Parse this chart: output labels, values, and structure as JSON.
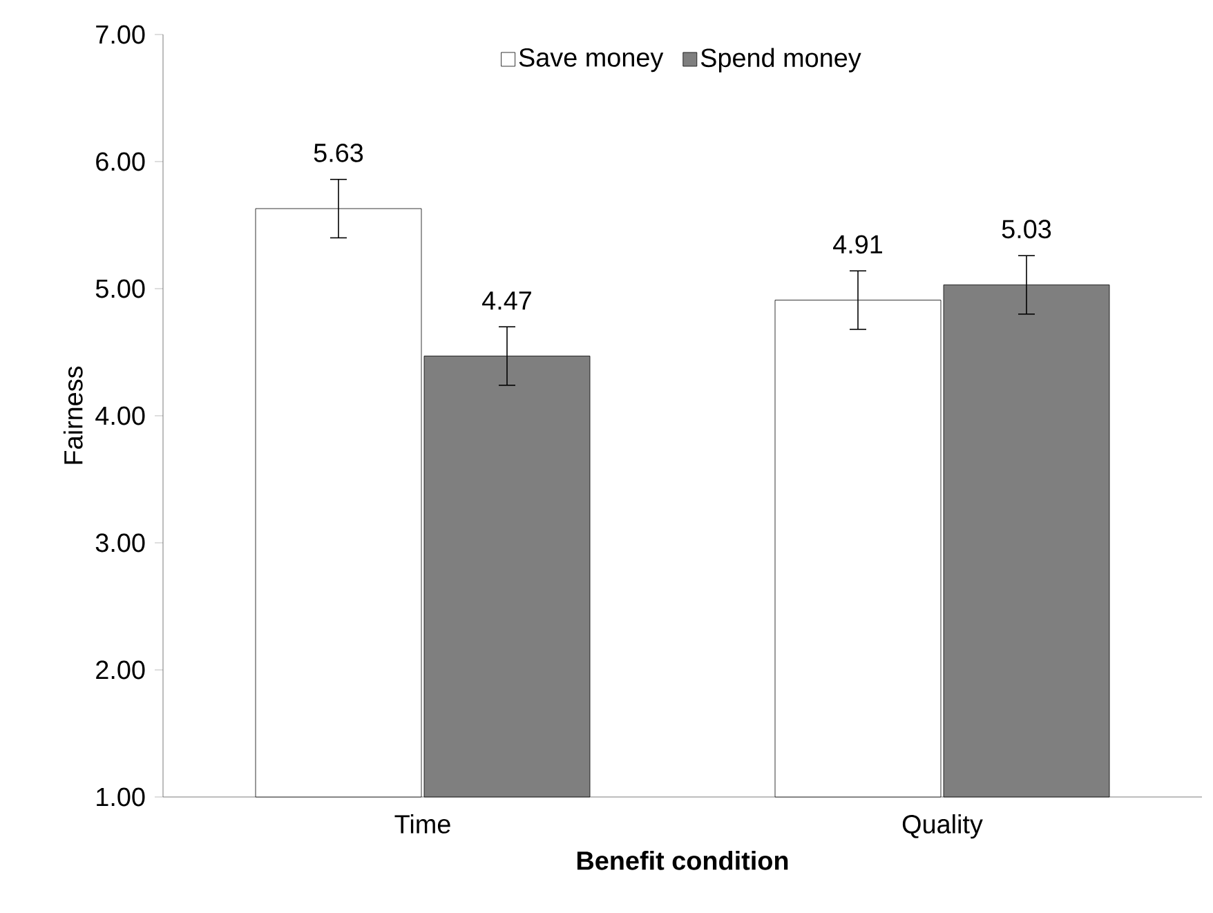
{
  "chart_data": {
    "type": "bar",
    "xlabel": "Benefit condition",
    "ylabel": "Fairness",
    "categories": [
      "Time",
      "Quality"
    ],
    "series": [
      {
        "name": "Save money",
        "color": "#ffffff",
        "values": [
          5.63,
          4.91
        ],
        "errors": [
          0.23,
          0.23
        ]
      },
      {
        "name": "Spend money",
        "color": "#7f7f7f",
        "values": [
          4.47,
          5.03
        ],
        "errors": [
          0.23,
          0.23
        ]
      }
    ],
    "ylim": [
      1,
      7
    ],
    "yticks": [
      {
        "value": 1,
        "label": "1.00"
      },
      {
        "value": 2,
        "label": "2.00"
      },
      {
        "value": 3,
        "label": "3.00"
      },
      {
        "value": 4,
        "label": "4.00"
      },
      {
        "value": 5,
        "label": "5.00"
      },
      {
        "value": 6,
        "label": "6.00"
      },
      {
        "value": 7,
        "label": "7.00"
      }
    ],
    "data_labels": true,
    "legend": "top",
    "grid": false
  }
}
